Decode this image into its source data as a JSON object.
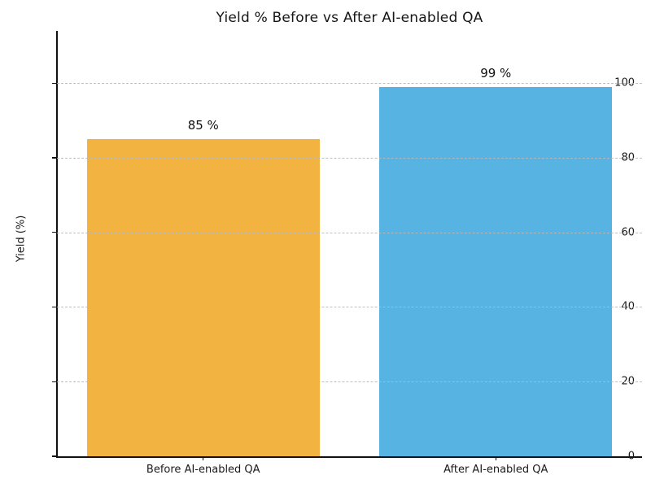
{
  "chart_data": {
    "type": "bar",
    "title": "Yield % Before vs After AI-enabled QA",
    "xlabel": "",
    "ylabel": "Yield (%)",
    "categories": [
      "Before AI-enabled QA",
      "After AI-enabled QA"
    ],
    "values": [
      85,
      99
    ],
    "bar_value_labels": [
      "85 %",
      "99 %"
    ],
    "bar_colors": [
      "#F2B340",
      "#57B3E1"
    ],
    "yticks": [
      0,
      20,
      40,
      60,
      80,
      100
    ],
    "ylim": [
      0,
      114
    ],
    "grid": "horizontal-dashed",
    "legend_position": "none",
    "bar_width_fraction": 0.398
  }
}
